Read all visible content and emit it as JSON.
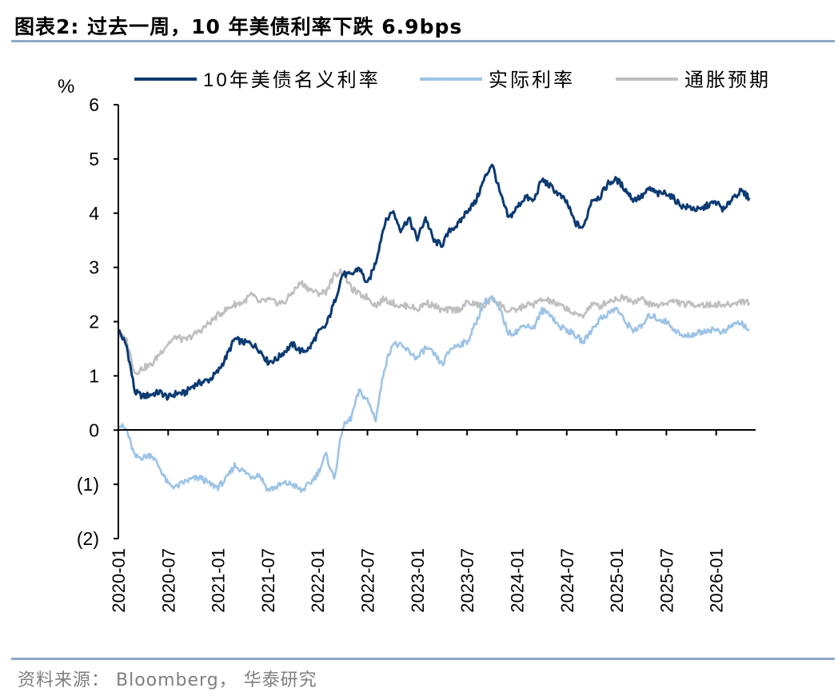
{
  "header": {
    "title": "图表2:  过去一周，10 年美债利率下跌 6.9bps"
  },
  "footer": {
    "source": "资料来源： Bloomberg， 华泰研究"
  },
  "colors": {
    "nominal": "#0c3a73",
    "real": "#9dc3e6",
    "breakeven": "#bfbfbf",
    "rule": "#8ea9c8"
  },
  "chart_data": {
    "type": "line",
    "title": "过去一周，10 年美债利率下跌 6.9bps",
    "ylabel": "%",
    "ylim": [
      -2,
      6
    ],
    "yticks": [
      -2,
      -1,
      0,
      1,
      2,
      3,
      4,
      5,
      6
    ],
    "ytick_labels": [
      "(2)",
      "(1)",
      "0",
      "1",
      "2",
      "3",
      "4",
      "5",
      "6"
    ],
    "xlim": [
      "2020-01",
      "2026-05"
    ],
    "xticks": [
      "2020-01",
      "2020-07",
      "2021-01",
      "2021-07",
      "2022-01",
      "2022-07",
      "2023-01",
      "2023-07",
      "2024-01",
      "2024-07",
      "2025-01",
      "2025-07",
      "2026-01"
    ],
    "legend_position": "top",
    "series": [
      {
        "name": "10年美债名义利率",
        "color_key": "nominal",
        "x": [
          "2020-01",
          "2020-02",
          "2020-03",
          "2020-04",
          "2020-05",
          "2020-06",
          "2020-07",
          "2020-08",
          "2020-09",
          "2020-10",
          "2020-11",
          "2020-12",
          "2021-01",
          "2021-02",
          "2021-03",
          "2021-04",
          "2021-05",
          "2021-06",
          "2021-07",
          "2021-08",
          "2021-09",
          "2021-10",
          "2021-11",
          "2021-12",
          "2022-01",
          "2022-02",
          "2022-03",
          "2022-04",
          "2022-05",
          "2022-06",
          "2022-07",
          "2022-08",
          "2022-09",
          "2022-10",
          "2022-11",
          "2022-12",
          "2023-01",
          "2023-02",
          "2023-03",
          "2023-04",
          "2023-05",
          "2023-06",
          "2023-07",
          "2023-08",
          "2023-09",
          "2023-10",
          "2023-11",
          "2023-12",
          "2024-01",
          "2024-02",
          "2024-03",
          "2024-04",
          "2024-05",
          "2024-06",
          "2024-07",
          "2024-08",
          "2024-09",
          "2024-10",
          "2024-11",
          "2024-12",
          "2025-01",
          "2025-02",
          "2025-03",
          "2025-04",
          "2025-05",
          "2025-06",
          "2025-07",
          "2025-08",
          "2025-09",
          "2025-10",
          "2025-11",
          "2025-12",
          "2026-01",
          "2026-02",
          "2026-03",
          "2026-04",
          "2026-05"
        ],
        "values": [
          1.85,
          1.55,
          0.7,
          0.62,
          0.66,
          0.7,
          0.6,
          0.68,
          0.68,
          0.82,
          0.88,
          0.93,
          1.08,
          1.35,
          1.68,
          1.62,
          1.6,
          1.48,
          1.26,
          1.3,
          1.45,
          1.58,
          1.45,
          1.5,
          1.78,
          1.92,
          2.35,
          2.88,
          2.85,
          3.0,
          2.68,
          3.1,
          3.78,
          4.05,
          3.7,
          3.9,
          3.52,
          3.92,
          3.48,
          3.42,
          3.7,
          3.8,
          4.05,
          4.2,
          4.6,
          4.92,
          4.35,
          3.9,
          4.1,
          4.3,
          4.22,
          4.62,
          4.5,
          4.35,
          4.2,
          3.82,
          3.72,
          4.25,
          4.3,
          4.55,
          4.62,
          4.45,
          4.25,
          4.3,
          4.45,
          4.35,
          4.38,
          4.25,
          4.12,
          4.1,
          4.05,
          4.15,
          4.2,
          4.05,
          4.3,
          4.4,
          4.28
        ]
      },
      {
        "name": "实际利率",
        "color_key": "real",
        "x": [
          "2020-01",
          "2020-02",
          "2020-03",
          "2020-04",
          "2020-05",
          "2020-06",
          "2020-07",
          "2020-08",
          "2020-09",
          "2020-10",
          "2020-11",
          "2020-12",
          "2021-01",
          "2021-02",
          "2021-03",
          "2021-04",
          "2021-05",
          "2021-06",
          "2021-07",
          "2021-08",
          "2021-09",
          "2021-10",
          "2021-11",
          "2021-12",
          "2022-01",
          "2022-02",
          "2022-03",
          "2022-04",
          "2022-05",
          "2022-06",
          "2022-07",
          "2022-08",
          "2022-09",
          "2022-10",
          "2022-11",
          "2022-12",
          "2023-01",
          "2023-02",
          "2023-03",
          "2023-04",
          "2023-05",
          "2023-06",
          "2023-07",
          "2023-08",
          "2023-09",
          "2023-10",
          "2023-11",
          "2023-12",
          "2024-01",
          "2024-02",
          "2024-03",
          "2024-04",
          "2024-05",
          "2024-06",
          "2024-07",
          "2024-08",
          "2024-09",
          "2024-10",
          "2024-11",
          "2024-12",
          "2025-01",
          "2025-02",
          "2025-03",
          "2025-04",
          "2025-05",
          "2025-06",
          "2025-07",
          "2025-08",
          "2025-09",
          "2025-10",
          "2025-11",
          "2025-12",
          "2026-01",
          "2026-02",
          "2026-03",
          "2026-04",
          "2026-05"
        ],
        "values": [
          0.12,
          0.0,
          -0.5,
          -0.5,
          -0.45,
          -0.7,
          -1.0,
          -1.05,
          -0.95,
          -0.9,
          -0.88,
          -1.0,
          -1.05,
          -0.9,
          -0.65,
          -0.75,
          -0.85,
          -0.82,
          -1.1,
          -1.05,
          -0.98,
          -1.0,
          -1.12,
          -1.0,
          -0.8,
          -0.45,
          -0.9,
          0.05,
          0.22,
          0.72,
          0.55,
          0.2,
          1.12,
          1.6,
          1.55,
          1.45,
          1.32,
          1.52,
          1.4,
          1.2,
          1.5,
          1.58,
          1.62,
          1.95,
          2.35,
          2.45,
          2.2,
          1.78,
          1.82,
          1.95,
          1.88,
          2.2,
          2.15,
          1.92,
          1.85,
          1.75,
          1.62,
          1.85,
          2.05,
          2.15,
          2.25,
          2.0,
          1.85,
          1.9,
          2.12,
          2.05,
          2.0,
          1.85,
          1.72,
          1.76,
          1.8,
          1.85,
          1.85,
          1.8,
          1.95,
          1.98,
          1.85
        ]
      },
      {
        "name": "通胀预期",
        "color_key": "breakeven",
        "x": [
          "2020-01",
          "2020-02",
          "2020-03",
          "2020-04",
          "2020-05",
          "2020-06",
          "2020-07",
          "2020-08",
          "2020-09",
          "2020-10",
          "2020-11",
          "2020-12",
          "2021-01",
          "2021-02",
          "2021-03",
          "2021-04",
          "2021-05",
          "2021-06",
          "2021-07",
          "2021-08",
          "2021-09",
          "2021-10",
          "2021-11",
          "2021-12",
          "2022-01",
          "2022-02",
          "2022-03",
          "2022-04",
          "2022-05",
          "2022-06",
          "2022-07",
          "2022-08",
          "2022-09",
          "2022-10",
          "2022-11",
          "2022-12",
          "2023-01",
          "2023-02",
          "2023-03",
          "2023-04",
          "2023-05",
          "2023-06",
          "2023-07",
          "2023-08",
          "2023-09",
          "2023-10",
          "2023-11",
          "2023-12",
          "2024-01",
          "2024-02",
          "2024-03",
          "2024-04",
          "2024-05",
          "2024-06",
          "2024-07",
          "2024-08",
          "2024-09",
          "2024-10",
          "2024-11",
          "2024-12",
          "2025-01",
          "2025-02",
          "2025-03",
          "2025-04",
          "2025-05",
          "2025-06",
          "2025-07",
          "2025-08",
          "2025-09",
          "2025-10",
          "2025-11",
          "2025-12",
          "2026-01",
          "2026-02",
          "2026-03",
          "2026-04",
          "2026-05"
        ],
        "values": [
          1.78,
          1.65,
          1.05,
          1.15,
          1.2,
          1.42,
          1.6,
          1.72,
          1.65,
          1.75,
          1.85,
          1.98,
          2.12,
          2.22,
          2.32,
          2.35,
          2.5,
          2.35,
          2.4,
          2.35,
          2.35,
          2.55,
          2.72,
          2.6,
          2.52,
          2.55,
          2.85,
          2.95,
          2.62,
          2.5,
          2.45,
          2.3,
          2.42,
          2.35,
          2.28,
          2.3,
          2.22,
          2.35,
          2.3,
          2.2,
          2.22,
          2.22,
          2.35,
          2.32,
          2.28,
          2.42,
          2.32,
          2.18,
          2.22,
          2.3,
          2.32,
          2.4,
          2.38,
          2.3,
          2.25,
          2.12,
          2.12,
          2.32,
          2.28,
          2.38,
          2.42,
          2.45,
          2.38,
          2.42,
          2.32,
          2.3,
          2.35,
          2.38,
          2.32,
          2.32,
          2.32,
          2.3,
          2.32,
          2.3,
          2.32,
          2.38,
          2.35
        ]
      }
    ]
  }
}
